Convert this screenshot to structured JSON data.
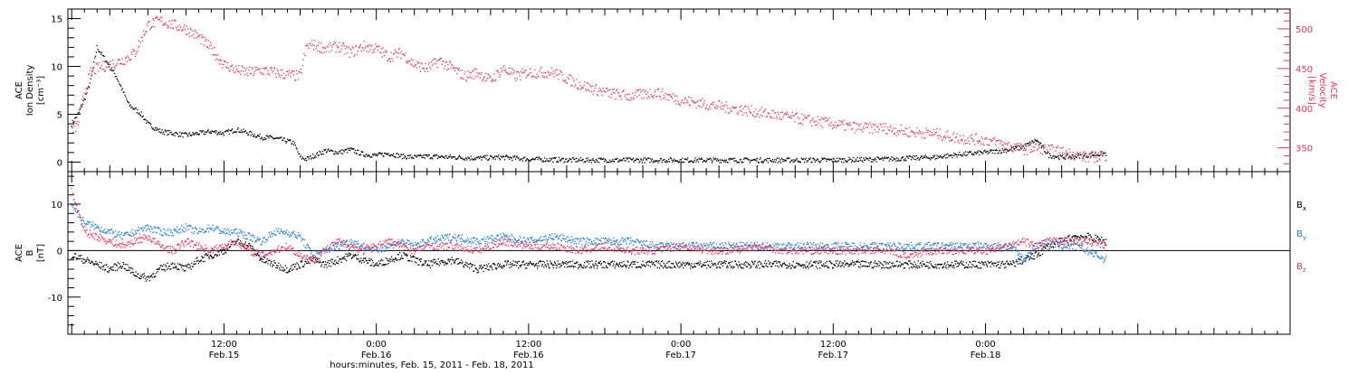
{
  "chart_data": [
    {
      "type": "scatter",
      "panel": "top",
      "ylabel_left": [
        "ACE",
        "Ion Density",
        "[cm⁻³]"
      ],
      "ylabel_right": [
        "ACE",
        "Velocity",
        "[km/s]"
      ],
      "ylim_left": [
        -1,
        16
      ],
      "yticks_left": [
        "0",
        "5",
        "10",
        "15"
      ],
      "ylim_right": [
        320,
        525
      ],
      "yticks_right": [
        "350",
        "400",
        "450",
        "500"
      ],
      "series": [
        {
          "axis": "left",
          "color": "#000000",
          "x": [
            0.0,
            0.5,
            1.0,
            1.5,
            2.0,
            2.5,
            3.0,
            3.5,
            4.0,
            4.5,
            5.0,
            5.5,
            6.0,
            7.0,
            8.0,
            9.0,
            10.0,
            11.0,
            12.0,
            13.0,
            14.0,
            15.0,
            16.0,
            17.0,
            17.5,
            18.0,
            18.5,
            19.0,
            20.0,
            21.0,
            22.0,
            23.0,
            24.0,
            25.0,
            26.0,
            27.0,
            28.0,
            30.0,
            32.0,
            34.0,
            36.0,
            40.0,
            44.0,
            48.0,
            52.0,
            56.0,
            60.0,
            64.0,
            68.0,
            70.0,
            72.0,
            74.0,
            75.0,
            76.0,
            77.0,
            78.0,
            79.0,
            80.0,
            81.5
          ],
          "y": [
            4.0,
            5.0,
            6.5,
            8.5,
            12.0,
            11.0,
            10.0,
            9.0,
            7.5,
            6.0,
            5.5,
            5.0,
            4.0,
            3.2,
            3.0,
            2.8,
            3.0,
            3.2,
            3.0,
            3.4,
            3.0,
            2.6,
            2.5,
            2.2,
            2.0,
            0.5,
            0.3,
            0.6,
            1.2,
            1.0,
            1.3,
            0.8,
            0.7,
            0.9,
            0.6,
            0.5,
            0.6,
            0.5,
            0.4,
            0.5,
            0.3,
            0.2,
            0.2,
            0.2,
            0.2,
            0.2,
            0.2,
            0.3,
            0.5,
            0.8,
            1.0,
            1.3,
            1.6,
            2.3,
            0.7,
            0.5,
            0.6,
            0.7,
            0.9
          ]
        },
        {
          "axis": "right",
          "color": "#e8325a",
          "x": [
            0.0,
            0.5,
            1.0,
            1.5,
            2.0,
            3.0,
            4.0,
            5.0,
            6.0,
            7.0,
            8.0,
            9.0,
            10.0,
            11.0,
            12.0,
            13.0,
            14.0,
            15.0,
            16.0,
            17.0,
            18.0,
            18.5,
            19.0,
            20.0,
            21.0,
            22.0,
            23.0,
            24.0,
            25.0,
            26.0,
            27.0,
            28.0,
            29.0,
            30.0,
            31.0,
            32.0,
            33.0,
            34.0,
            35.0,
            36.0,
            38.0,
            40.0,
            42.0,
            44.0,
            46.0,
            48.0,
            50.0,
            52.0,
            54.0,
            56.0,
            58.0,
            60.0,
            62.0,
            64.0,
            66.0,
            68.0,
            70.0,
            72.0,
            74.0,
            75.0,
            76.0,
            78.0,
            80.0,
            81.5
          ],
          "y": [
            370,
            380,
            420,
            445,
            450,
            455,
            460,
            470,
            505,
            510,
            505,
            500,
            490,
            475,
            455,
            448,
            445,
            448,
            445,
            442,
            440,
            478,
            480,
            475,
            478,
            470,
            478,
            475,
            465,
            470,
            455,
            450,
            460,
            450,
            440,
            445,
            435,
            450,
            440,
            445,
            445,
            430,
            420,
            415,
            420,
            410,
            405,
            400,
            395,
            390,
            385,
            380,
            375,
            375,
            370,
            368,
            362,
            360,
            352,
            348,
            350,
            345,
            338,
            340
          ]
        }
      ]
    },
    {
      "type": "scatter",
      "panel": "bottom",
      "ylabel": [
        "ACE",
        "B",
        "[nT]"
      ],
      "ylim": [
        -18,
        17
      ],
      "yticks": [
        "-10",
        "0",
        "10"
      ],
      "zero_line": true,
      "series": [
        {
          "name": "Bx",
          "label": "B",
          "sub": "x",
          "color": "#000000",
          "x": [
            0,
            1,
            2,
            3,
            4,
            5,
            6,
            7,
            8,
            9,
            10,
            11,
            12,
            13,
            14,
            15,
            16,
            17,
            18,
            19,
            20,
            21,
            22,
            23,
            24,
            25,
            26,
            27,
            28,
            30,
            32,
            34,
            36,
            38,
            40,
            42,
            44,
            46,
            48,
            50,
            52,
            54,
            56,
            58,
            60,
            62,
            64,
            66,
            68,
            70,
            72,
            74,
            75,
            76,
            77,
            78,
            79,
            80,
            81.5
          ],
          "y": [
            -1,
            -2,
            -3,
            -4,
            -3,
            -5,
            -6,
            -4,
            -3,
            -4,
            -2,
            -1,
            0,
            2,
            1,
            -2,
            -3,
            -4,
            -3,
            -2,
            -3,
            -2,
            -1,
            -2,
            -3,
            -2,
            -1,
            -2,
            -3,
            -2,
            -4,
            -3,
            -3,
            -3,
            -3,
            -3,
            -3,
            -3,
            -3,
            -3,
            -3,
            -3,
            -3,
            -3,
            -3,
            -3,
            -3,
            -3,
            -3,
            -3,
            -3,
            -3,
            -2,
            -1,
            1,
            2,
            3,
            3,
            2
          ]
        },
        {
          "name": "By",
          "label": "B",
          "sub": "y",
          "color": "#1f7fe0",
          "x": [
            0,
            1,
            2,
            3,
            4,
            5,
            6,
            7,
            8,
            9,
            10,
            11,
            12,
            13,
            14,
            15,
            16,
            17,
            18,
            19,
            20,
            21,
            22,
            23,
            24,
            25,
            26,
            27,
            28,
            30,
            32,
            34,
            36,
            38,
            40,
            42,
            44,
            46,
            48,
            50,
            52,
            54,
            56,
            58,
            60,
            62,
            64,
            66,
            68,
            70,
            72,
            74,
            75,
            76,
            77,
            78,
            79,
            80,
            81.5
          ],
          "y": [
            10,
            6,
            5,
            4,
            3,
            4,
            5,
            4,
            4,
            5,
            4,
            5,
            4,
            4,
            3,
            2,
            4,
            4,
            3,
            -1,
            0,
            1,
            2,
            1,
            0,
            1,
            2,
            1,
            2,
            3,
            2,
            3,
            2,
            3,
            2,
            2,
            2,
            1,
            1,
            1,
            1,
            1,
            1,
            1,
            1,
            1,
            1,
            1,
            1,
            1,
            1,
            1,
            -2,
            1,
            2,
            1,
            1,
            0,
            -2
          ]
        },
        {
          "name": "Bz",
          "label": "B",
          "sub": "z",
          "color": "#e8325a",
          "x": [
            0,
            1,
            2,
            3,
            4,
            5,
            6,
            7,
            8,
            9,
            10,
            11,
            12,
            13,
            14,
            15,
            16,
            17,
            18,
            19,
            20,
            21,
            22,
            23,
            24,
            25,
            26,
            27,
            28,
            30,
            32,
            34,
            36,
            38,
            40,
            42,
            44,
            46,
            48,
            50,
            52,
            54,
            56,
            58,
            60,
            62,
            64,
            66,
            68,
            70,
            72,
            74,
            75,
            76,
            77,
            78,
            79,
            80,
            81.5
          ],
          "y": [
            13,
            4,
            3,
            2,
            1,
            2,
            3,
            1,
            0,
            2,
            1,
            0,
            1,
            2,
            0,
            -1,
            0,
            1,
            -1,
            -2,
            0,
            2,
            1,
            0,
            1,
            2,
            1,
            0,
            1,
            1,
            0,
            2,
            1,
            1,
            0,
            1,
            0,
            0,
            1,
            0,
            0,
            1,
            0,
            0,
            0,
            0,
            0,
            -1,
            0,
            0,
            0,
            1,
            2,
            1,
            2,
            2,
            2,
            2,
            1
          ]
        }
      ]
    }
  ],
  "x_axis": {
    "xlim": [
      -0.3,
      96
    ],
    "major_ticks": [
      {
        "x": 12,
        "l1": "12:00",
        "l2": "Feb.15"
      },
      {
        "x": 24,
        "l1": "0:00",
        "l2": "Feb.16"
      },
      {
        "x": 36,
        "l1": "12:00",
        "l2": "Feb.16"
      },
      {
        "x": 48,
        "l1": "0:00",
        "l2": "Feb.17"
      },
      {
        "x": 60,
        "l1": "12:00",
        "l2": "Feb.17"
      },
      {
        "x": 72,
        "l1": "0:00",
        "l2": "Feb.18"
      }
    ],
    "xlabel": "hours:minutes, Feb. 15, 2011 - Feb. 18, 2011"
  }
}
